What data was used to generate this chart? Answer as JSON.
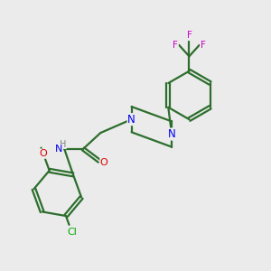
{
  "bg_color": "#ebebeb",
  "bond_color": "#2d6e2d",
  "N_color": "#0000ee",
  "O_color": "#dd0000",
  "Cl_color": "#00aa00",
  "F_color": "#cc00cc",
  "H_color": "#778877",
  "line_width": 1.6,
  "figsize": [
    3.0,
    3.0
  ],
  "dpi": 100,
  "xlim": [
    0,
    10
  ],
  "ylim": [
    0,
    10
  ]
}
